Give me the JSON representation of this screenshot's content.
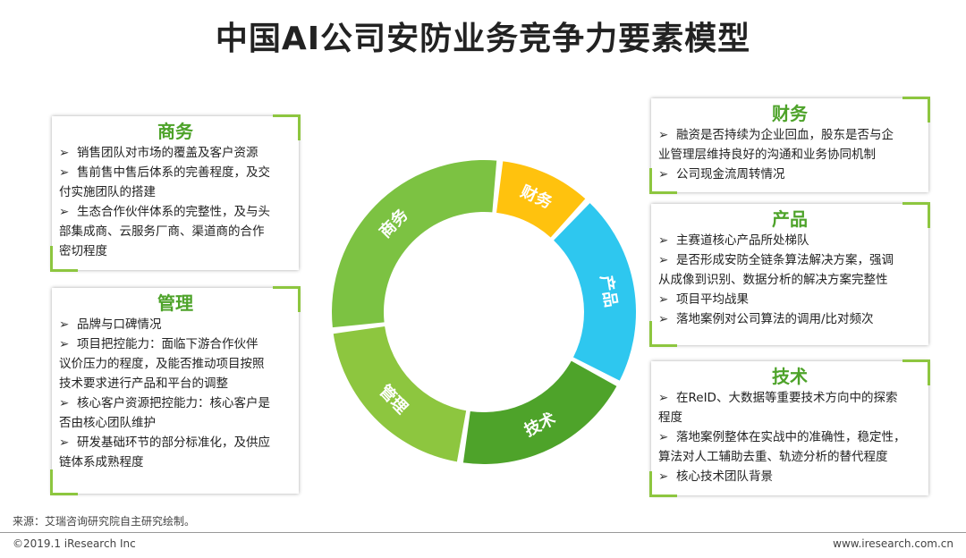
{
  "title": "中国AI公司安防业务竞争力要素模型",
  "donut": {
    "segments": [
      {
        "label": "商务",
        "color": "#7cc242",
        "start": 263,
        "end": 366
      },
      {
        "label": "财务",
        "color": "#ffc20e",
        "start": 6,
        "end": 43
      },
      {
        "label": "产品",
        "color": "#2ec7ef",
        "start": 43,
        "end": 118
      },
      {
        "label": "技术",
        "color": "#4ea32a",
        "start": 118,
        "end": 189
      },
      {
        "label": "管理",
        "color": "#8dc63f",
        "start": 189,
        "end": 263
      }
    ]
  },
  "cards": {
    "shangwu": {
      "heading": "商务",
      "items": [
        "销售团队对市场的覆盖及客户资源",
        "售前售中售后体系的完善程度，及交",
        "付实施团队的搭建",
        "生态合作伙伴体系的完整性，及与头",
        "部集成商、云服务厂商、渠道商的合作",
        "密切程度"
      ]
    },
    "guanli": {
      "heading": "管理",
      "items": [
        "品牌与口碑情况",
        "项目把控能力：面临下游合作伙伴",
        "议价压力的程度，及能否推动项目按照",
        "技术要求进行产品和平台的调整",
        "核心客户资源把控能力：核心客户是",
        "否由核心团队维护",
        "研发基础环节的部分标准化，及供应",
        "链体系成熟程度"
      ]
    },
    "caiwu": {
      "heading": "财务",
      "items": [
        "融资是否持续为企业回血，股东是否与企",
        "业管理层维持良好的沟通和业务协同机制",
        "公司现金流周转情况"
      ]
    },
    "chanpin": {
      "heading": "产品",
      "items": [
        "主赛道核心产品所处梯队",
        "是否形成安防全链条算法解决方案，强调",
        "从成像到识别、数据分析的解决方案完整性",
        "项目平均战果",
        "落地案例对公司算法的调用/比对频次"
      ]
    },
    "jishu": {
      "heading": "技术",
      "items": [
        "在ReID、大数据等重要技术方向中的探索",
        "程度",
        "落地案例整体在实战中的准确性，稳定性，",
        "算法对人工辅助去重、轨迹分析的替代程度",
        "核心技术团队背景"
      ]
    }
  },
  "footer": {
    "source": "来源：艾瑞咨询研究院自主研究绘制。",
    "copyright": "©2019.1 iResearch Inc",
    "website": "www.iresearch.com.cn"
  }
}
